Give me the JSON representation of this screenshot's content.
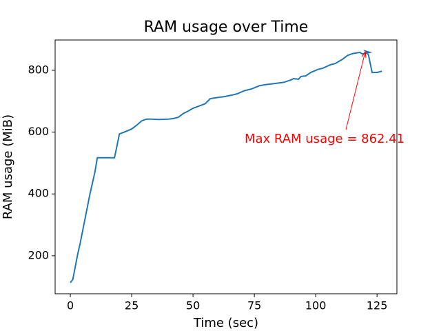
{
  "chart_data": {
    "type": "line",
    "title": "RAM usage over Time",
    "x_label": "Time (sec)",
    "y_label": "RAM usage (MiB)",
    "x": [
      0,
      1,
      3,
      4,
      6,
      8,
      10,
      11,
      14,
      18,
      20,
      22,
      25,
      27,
      29,
      31,
      33,
      36,
      40,
      42,
      44,
      46,
      48,
      50,
      53,
      55,
      57,
      60,
      63,
      66,
      68,
      71,
      74,
      77,
      80,
      83,
      87,
      90,
      91,
      93,
      94,
      96,
      98,
      101,
      103,
      106,
      108,
      111,
      113,
      115,
      118,
      119,
      122,
      120.2,
      121.5,
      123,
      125,
      127
    ],
    "series": [
      {
        "name": "RAM usage",
        "color": "#1f77b4",
        "values": [
          113,
          123,
          205,
          240,
          320,
          400,
          470,
          517,
          517,
          517,
          594,
          600,
          610,
          622,
          636,
          642,
          642,
          641,
          642,
          644,
          648,
          660,
          668,
          677,
          686,
          692,
          708,
          712,
          715,
          720,
          724,
          734,
          740,
          750,
          754,
          757,
          761,
          769,
          773,
          771,
          780,
          782,
          793,
          803,
          807,
          818,
          822,
          836,
          848,
          854,
          858,
          853,
          858,
          862.41,
          850,
          793,
          793,
          797
        ]
      }
    ],
    "annotation": {
      "text": "Max RAM usage = 862.41",
      "color": "red"
    },
    "xlim": [
      -6.2,
      133.1
    ],
    "xticks": [
      0,
      25,
      50,
      75,
      100,
      125
    ],
    "ylim": [
      77,
      898
    ],
    "yticks": [
      200,
      400,
      600,
      800
    ]
  }
}
